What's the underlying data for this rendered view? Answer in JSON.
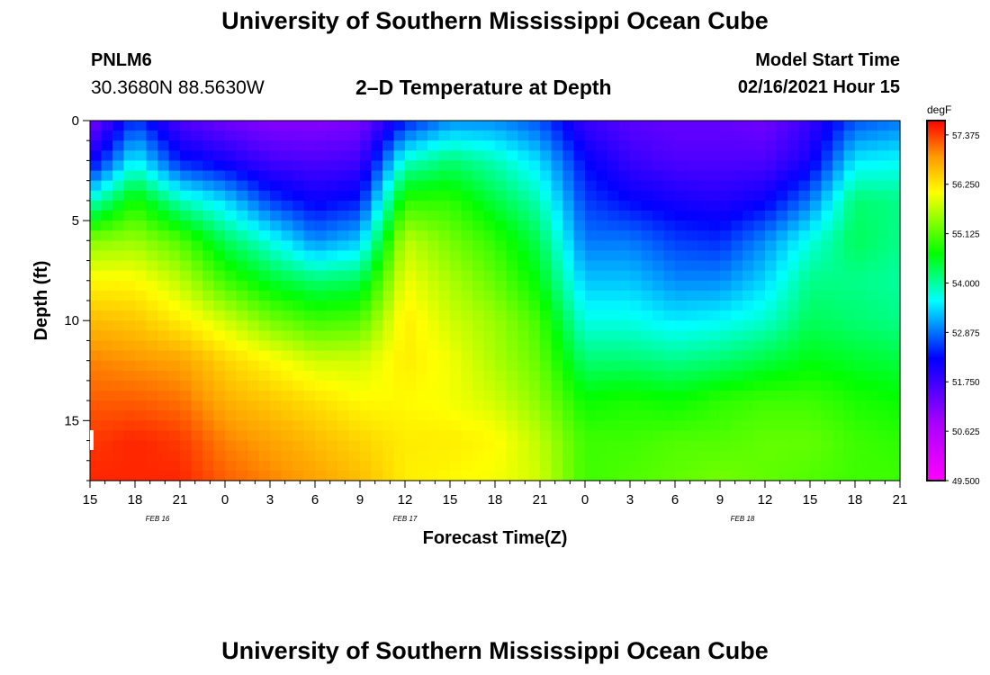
{
  "header": {
    "title": "University of Southern Mississippi Ocean Cube",
    "station_id": "PNLM6",
    "coordinates": "30.3680N 88.5630W",
    "model_start_label": "Model Start Time",
    "model_start_value": "02/16/2021 Hour 15"
  },
  "footer": {
    "title": "University of Southern Mississippi Ocean Cube"
  },
  "chart_data": {
    "type": "heatmap",
    "title": "2–D Temperature at Depth",
    "xlabel": "Forecast Time(Z)",
    "ylabel": "Depth (ft)",
    "colorbar_unit": "degF",
    "colorbar_ticks": [
      "57.375",
      "56.250",
      "55.125",
      "54.000",
      "52.875",
      "51.750",
      "50.625",
      "49.500"
    ],
    "colorbar_range": [
      49.5,
      57.7
    ],
    "y_ticks": [
      "0",
      "5",
      "10",
      "15"
    ],
    "ylim": [
      0,
      18
    ],
    "x_ticks": [
      "15",
      "18",
      "21",
      "0",
      "3",
      "6",
      "9",
      "12",
      "15",
      "18",
      "21",
      "0",
      "3",
      "6",
      "9",
      "12",
      "15",
      "18",
      "21"
    ],
    "xlim_hours": [
      0,
      54
    ],
    "date_labels": [
      {
        "text": "FEB 16",
        "hour": 4.5
      },
      {
        "text": "FEB 17",
        "hour": 21
      },
      {
        "text": "FEB 18",
        "hour": 43.5
      }
    ],
    "grid": {
      "hours": [
        0,
        3,
        6,
        9,
        12,
        15,
        18,
        21,
        24,
        27,
        30,
        33,
        36,
        39,
        42,
        45,
        48,
        51,
        54
      ],
      "depth_levels_ft": [
        0,
        2,
        4,
        6,
        8,
        10,
        12,
        14,
        16,
        18
      ],
      "temperature_degF": [
        [
          51.2,
          52.6,
          51.6,
          51.3,
          51.1,
          51.1,
          51.2,
          52.4,
          53.0,
          53.0,
          52.7,
          51.8,
          51.5,
          51.4,
          51.4,
          51.3,
          51.8,
          52.7,
          52.9
        ],
        [
          52.1,
          53.6,
          52.4,
          52.1,
          51.7,
          51.6,
          51.7,
          53.8,
          54.2,
          53.9,
          53.4,
          52.3,
          51.8,
          51.6,
          51.6,
          51.6,
          52.1,
          53.5,
          53.6
        ],
        [
          53.8,
          54.8,
          53.9,
          53.4,
          52.6,
          52.2,
          52.4,
          54.9,
          54.9,
          54.4,
          53.9,
          52.6,
          52.3,
          52.1,
          52.0,
          52.2,
          52.9,
          54.2,
          54.1
        ],
        [
          55.4,
          55.5,
          55.1,
          54.3,
          53.7,
          53.0,
          53.3,
          55.7,
          55.3,
          54.9,
          54.3,
          52.9,
          52.9,
          52.6,
          52.5,
          53.0,
          53.7,
          54.3,
          54.1
        ],
        [
          56.1,
          56.1,
          55.7,
          55.0,
          54.5,
          54.2,
          54.3,
          56.0,
          55.6,
          55.2,
          54.6,
          53.3,
          53.3,
          53.0,
          53.0,
          53.4,
          54.1,
          54.1,
          54.0
        ],
        [
          56.6,
          56.5,
          56.2,
          55.8,
          55.3,
          55.0,
          55.1,
          56.2,
          55.8,
          55.5,
          55.0,
          53.7,
          53.7,
          53.5,
          53.6,
          53.8,
          54.3,
          54.2,
          54.1
        ],
        [
          57.0,
          56.9,
          56.8,
          56.4,
          56.1,
          55.8,
          55.8,
          56.2,
          56.0,
          55.6,
          55.2,
          54.2,
          54.2,
          54.1,
          54.2,
          54.4,
          54.6,
          54.5,
          54.4
        ],
        [
          57.2,
          57.2,
          57.1,
          56.7,
          56.5,
          56.3,
          56.1,
          56.1,
          56.0,
          55.8,
          55.4,
          54.7,
          54.8,
          54.7,
          54.9,
          55.0,
          55.0,
          54.8,
          54.7
        ],
        [
          57.4,
          57.5,
          57.4,
          57.0,
          56.8,
          56.6,
          56.4,
          56.2,
          56.2,
          56.1,
          55.7,
          55.0,
          55.0,
          55.1,
          55.1,
          55.2,
          55.2,
          55.0,
          54.9
        ],
        [
          57.5,
          57.5,
          57.5,
          57.2,
          57.0,
          56.8,
          56.6,
          56.2,
          56.1,
          56.0,
          55.8,
          55.0,
          55.1,
          55.2,
          55.3,
          55.2,
          55.1,
          55.0,
          55.0
        ]
      ]
    }
  }
}
